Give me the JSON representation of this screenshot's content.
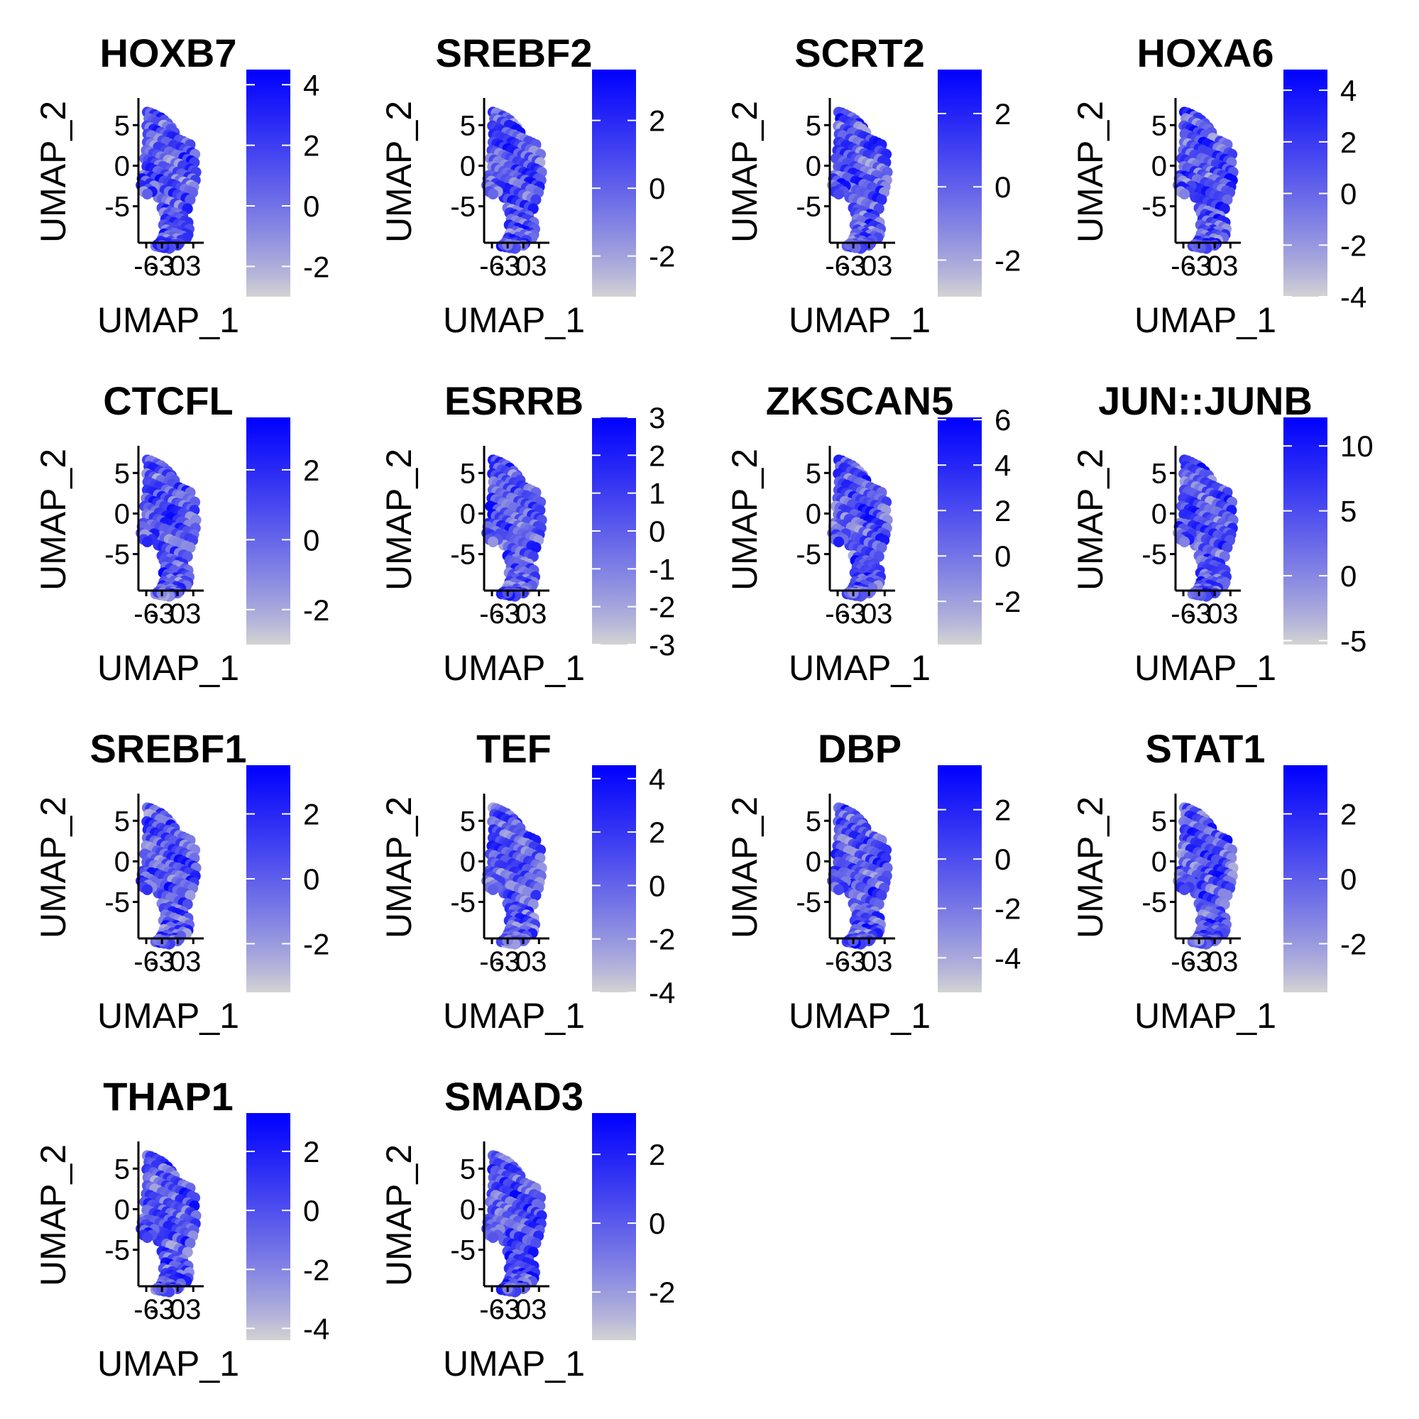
{
  "chart_data": {
    "type": "scatter",
    "layout": {
      "rows": 4,
      "cols": 4
    },
    "xlabel": "UMAP_1",
    "ylabel": "UMAP_2",
    "x_ticks": [
      "-6",
      "-3",
      "0",
      "3"
    ],
    "y_ticks": [
      "5",
      "0",
      "-5"
    ],
    "x_tick_values": [
      -6,
      -3,
      0,
      3
    ],
    "y_tick_values": [
      5,
      0,
      -5
    ],
    "xlim": [
      -7.5,
      5
    ],
    "ylim": [
      -9.5,
      8
    ],
    "color_low": "#d3d3d3",
    "color_high": "#0000ff",
    "legend_placement": "right",
    "panels": [
      {
        "title": "HOXB7",
        "colorbar_range": [
          -3,
          4.5
        ],
        "colorbar_ticks": [
          "4",
          "2",
          "0",
          "-2"
        ],
        "colorbar_tick_values": [
          4,
          2,
          0,
          -2
        ]
      },
      {
        "title": "SREBF2",
        "colorbar_range": [
          -3.2,
          3.5
        ],
        "colorbar_ticks": [
          "2",
          "0",
          "-2"
        ],
        "colorbar_tick_values": [
          2,
          0,
          -2
        ]
      },
      {
        "title": "SCRT2",
        "colorbar_range": [
          -3,
          3.2
        ],
        "colorbar_ticks": [
          "2",
          "0",
          "-2"
        ],
        "colorbar_tick_values": [
          2,
          0,
          -2
        ]
      },
      {
        "title": "HOXA6",
        "colorbar_range": [
          -4,
          4.8
        ],
        "colorbar_ticks": [
          "4",
          "2",
          "0",
          "-2",
          "-4"
        ],
        "colorbar_tick_values": [
          4,
          2,
          0,
          -2,
          -4
        ]
      },
      {
        "title": "CTCFL",
        "colorbar_range": [
          -3,
          3.5
        ],
        "colorbar_ticks": [
          "2",
          "0",
          "-2"
        ],
        "colorbar_tick_values": [
          2,
          0,
          -2
        ]
      },
      {
        "title": "ESRRB",
        "colorbar_range": [
          -3,
          3
        ],
        "colorbar_ticks": [
          "3",
          "2",
          "1",
          "0",
          "-1",
          "-2",
          "-3"
        ],
        "colorbar_tick_values": [
          3,
          2,
          1,
          0,
          -1,
          -2,
          -3
        ]
      },
      {
        "title": "ZKSCAN5",
        "colorbar_range": [
          -3.9,
          6.1
        ],
        "colorbar_ticks": [
          "6",
          "4",
          "2",
          "0",
          "-2"
        ],
        "colorbar_tick_values": [
          6,
          4,
          2,
          0,
          -2
        ]
      },
      {
        "title": "JUN::JUNB",
        "colorbar_range": [
          -5.3,
          12.2
        ],
        "colorbar_ticks": [
          "10",
          "5",
          "0",
          "-5"
        ],
        "colorbar_tick_values": [
          10,
          5,
          0,
          -5
        ]
      },
      {
        "title": "SREBF1",
        "colorbar_range": [
          -3.5,
          3.5
        ],
        "colorbar_ticks": [
          "2",
          "0",
          "-2"
        ],
        "colorbar_tick_values": [
          2,
          0,
          -2
        ]
      },
      {
        "title": "TEF",
        "colorbar_range": [
          -4,
          4.5
        ],
        "colorbar_ticks": [
          "4",
          "2",
          "0",
          "-2",
          "-4"
        ],
        "colorbar_tick_values": [
          4,
          2,
          0,
          -2,
          -4
        ]
      },
      {
        "title": "DBP",
        "colorbar_range": [
          -5.4,
          3.8
        ],
        "colorbar_ticks": [
          "2",
          "0",
          "-2",
          "-4"
        ],
        "colorbar_tick_values": [
          2,
          0,
          -2,
          -4
        ]
      },
      {
        "title": "STAT1",
        "colorbar_range": [
          -3.5,
          3.5
        ],
        "colorbar_ticks": [
          "2",
          "0",
          "-2"
        ],
        "colorbar_tick_values": [
          2,
          0,
          -2
        ]
      },
      {
        "title": "THAP1",
        "colorbar_range": [
          -4.4,
          3.3
        ],
        "colorbar_ticks": [
          "2",
          "0",
          "-2",
          "-4"
        ],
        "colorbar_tick_values": [
          2,
          0,
          -2,
          -4
        ]
      },
      {
        "title": "SMAD3",
        "colorbar_range": [
          -3.4,
          3.2
        ],
        "colorbar_ticks": [
          "2",
          "0",
          "-2"
        ],
        "colorbar_tick_values": [
          2,
          0,
          -2
        ]
      }
    ],
    "cells": {
      "x": [
        -5.8,
        -5.2,
        -4.5,
        -3.9,
        -3.2,
        -2.6,
        -1.9,
        -1.2,
        -5.5,
        -4.8,
        -4.1,
        -3.4,
        -2.7,
        -2.0,
        -1.3,
        -0.6,
        -5.9,
        -5.3,
        -4.6,
        -3.9,
        -3.2,
        -2.5,
        -1.8,
        -1.1,
        -0.4,
        0.3,
        1.0,
        1.7,
        2.4,
        -5.7,
        -5.0,
        -4.3,
        -3.6,
        -2.9,
        -2.2,
        -1.5,
        -0.8,
        -0.1,
        0.6,
        1.3,
        2.0,
        2.7,
        3.3,
        -5.8,
        -5.1,
        -4.4,
        -3.7,
        -3.0,
        -2.3,
        -1.6,
        -0.9,
        -0.2,
        0.5,
        1.2,
        1.9,
        2.6,
        3.2,
        -6.0,
        -5.3,
        -4.6,
        -3.9,
        -3.2,
        -2.5,
        -1.8,
        -1.1,
        -0.4,
        0.3,
        1.0,
        1.7,
        2.4,
        3.0,
        3.5,
        -6.3,
        -5.6,
        -4.9,
        -4.2,
        -3.5,
        -2.8,
        -2.1,
        -1.4,
        -0.7,
        0.0,
        0.7,
        1.4,
        2.1,
        2.8,
        3.4,
        -5.9,
        -5.2,
        -4.5,
        -3.8,
        -3.1,
        -2.4,
        -1.7,
        -1.0,
        -0.3,
        0.4,
        1.1,
        1.8,
        2.5,
        3.1,
        -6.6,
        -5.8,
        -5.0,
        -4.2,
        -3.4,
        -2.6,
        -1.8,
        -1.0,
        -0.2,
        0.6,
        1.4,
        2.2,
        2.9,
        -5.6,
        -4.8,
        -4.0,
        -3.2,
        -2.4,
        -1.6,
        -0.8,
        0.0,
        0.8,
        1.6,
        2.4,
        -6.8,
        -6.1,
        -5.3,
        -4.5,
        -3.7,
        -2.9,
        -2.1,
        -1.3,
        -0.5,
        0.3,
        1.1,
        1.9,
        -7.0,
        -6.3,
        -5.6,
        -4.9,
        -3.0,
        -2.2,
        -1.4,
        -0.6,
        0.2,
        1.0,
        -6.5,
        -5.8,
        -2.6,
        -1.8,
        -1.0,
        -0.2,
        0.6,
        1.4,
        2.0,
        -2.3,
        -1.5,
        -0.7,
        0.1,
        0.9,
        1.6,
        2.2,
        -2.7,
        -1.9,
        -1.1,
        -0.3,
        0.5,
        1.3,
        2.0,
        -2.2,
        -1.4,
        -0.6,
        0.2,
        1.0,
        1.7,
        -2.6,
        -1.8,
        -1.0,
        -0.2,
        0.6,
        -2.9,
        -2.1,
        -1.3,
        -0.5,
        0.3,
        -3.2,
        -2.4,
        -1.6,
        -0.8,
        0.0,
        -3.5,
        -2.7,
        -1.9,
        -1.1,
        -3.8,
        -3.0,
        -2.2,
        -1.4,
        -4.0,
        -3.2,
        -2.4,
        -1.6,
        -4.2,
        -3.4,
        -2.6,
        -3.8,
        -3.0
      ],
      "y": [
        6.6,
        6.5,
        6.3,
        6.1,
        5.9,
        5.6,
        5.2,
        4.7,
        5.8,
        5.6,
        5.4,
        5.2,
        5.0,
        4.8,
        4.5,
        4.1,
        4.9,
        4.7,
        4.5,
        4.3,
        4.1,
        3.9,
        3.8,
        3.6,
        3.4,
        3.2,
        3.0,
        2.8,
        2.6,
        3.9,
        3.7,
        3.5,
        3.3,
        3.1,
        2.9,
        2.7,
        2.5,
        2.3,
        2.2,
        2.0,
        1.8,
        1.6,
        1.4,
        2.9,
        2.7,
        2.5,
        2.3,
        2.1,
        1.9,
        1.7,
        1.5,
        1.3,
        1.2,
        1.0,
        0.8,
        0.6,
        0.4,
        1.9,
        1.7,
        1.5,
        1.3,
        1.1,
        0.9,
        0.7,
        0.5,
        0.3,
        0.2,
        0.0,
        -0.2,
        -0.4,
        -0.6,
        -0.8,
        0.9,
        0.7,
        0.5,
        0.3,
        0.1,
        -0.1,
        -0.3,
        -0.5,
        -0.7,
        -0.8,
        -1.0,
        -1.2,
        -1.4,
        -1.6,
        -1.8,
        -0.1,
        -0.3,
        -0.5,
        -0.7,
        -0.9,
        -1.1,
        -1.3,
        -1.5,
        -1.7,
        -1.8,
        -2.0,
        -2.2,
        -2.4,
        -2.6,
        -1.2,
        -1.3,
        -1.4,
        -1.5,
        -1.7,
        -1.9,
        -2.1,
        -2.3,
        -2.5,
        -2.7,
        -2.9,
        -3.1,
        -3.3,
        -2.2,
        -2.4,
        -2.6,
        -2.8,
        -3.0,
        -3.2,
        -3.4,
        -3.6,
        -3.8,
        -4.0,
        -4.2,
        -1.6,
        -1.9,
        -2.2,
        -2.5,
        -3.9,
        -4.1,
        -4.3,
        -4.5,
        -4.7,
        -4.9,
        -5.1,
        -5.3,
        -2.4,
        -2.6,
        -2.9,
        -3.2,
        -5.2,
        -5.4,
        -5.6,
        -5.8,
        -6.0,
        -6.2,
        -3.2,
        -3.5,
        -5.8,
        -6.0,
        -6.2,
        -6.4,
        -6.6,
        -6.8,
        -7.0,
        -6.6,
        -6.8,
        -7.0,
        -7.2,
        -7.4,
        -7.6,
        -7.8,
        -7.3,
        -7.5,
        -7.7,
        -7.9,
        -8.1,
        -8.3,
        -8.5,
        -7.9,
        -8.1,
        -8.3,
        -8.5,
        -8.7,
        -8.9,
        -8.4,
        -8.6,
        -8.8,
        -9.0,
        -9.2,
        -8.9,
        -9.1,
        -9.3,
        -9.5,
        -9.6,
        -9.3,
        -9.5,
        -9.6,
        -9.7,
        -9.8,
        -9.6,
        -9.7,
        -9.8,
        -9.9,
        -9.8,
        -9.9,
        -10.0,
        -10.1,
        -9.9,
        -10.0,
        -10.1,
        -10.2,
        -9.9,
        -10.0,
        -10.1,
        -9.7,
        -9.8
      ]
    }
  }
}
